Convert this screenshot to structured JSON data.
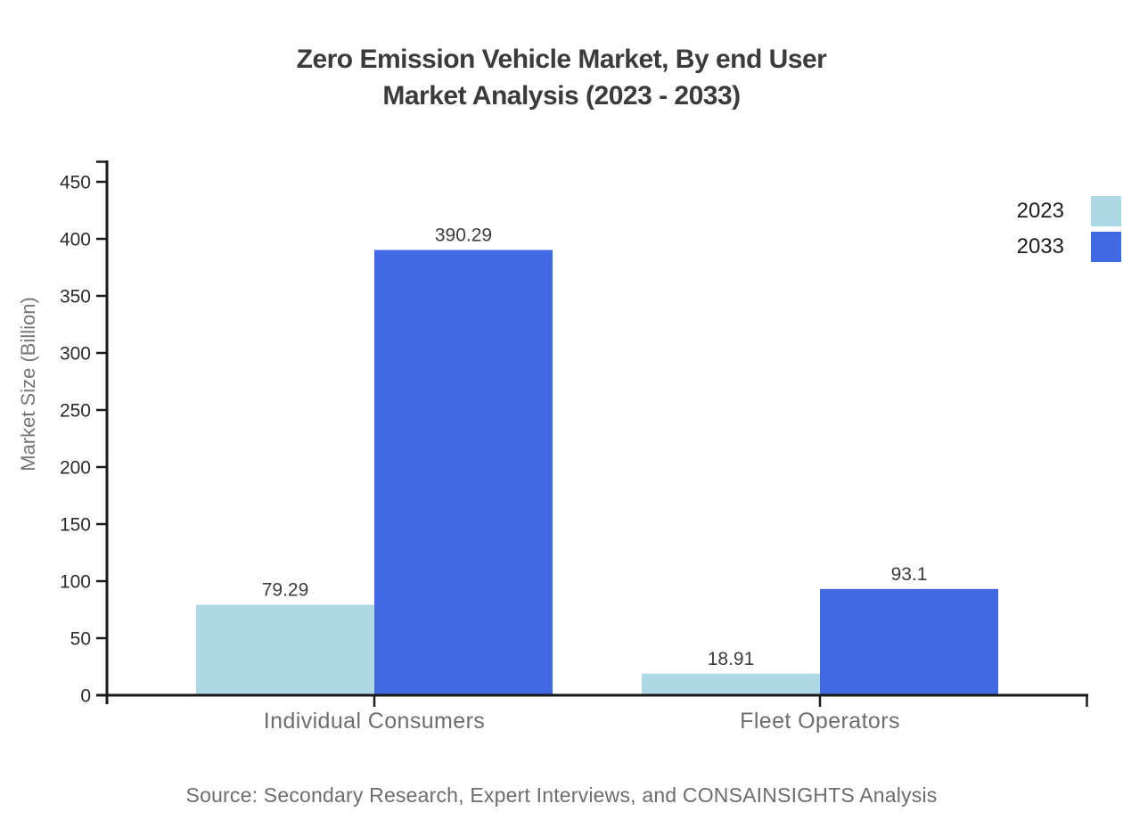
{
  "title": {
    "line1": "Zero Emission Vehicle Market, By end User",
    "line2": "Market Analysis (2023 - 2033)"
  },
  "source_note": "Source: Secondary Research, Expert Interviews, and CONSAINSIGHTS Analysis",
  "chart_data": {
    "type": "bar",
    "title": "Zero Emission Vehicle Market, By end User Market Analysis (2023 - 2033)",
    "categories": [
      "Individual Consumers",
      "Fleet Operators"
    ],
    "series": [
      {
        "name": "2023",
        "color": "#ADD8E6",
        "values": [
          79.29,
          18.91
        ],
        "labels": [
          "79.29",
          "18.91"
        ]
      },
      {
        "name": "2033",
        "color": "#4169E1",
        "values": [
          390.29,
          93.1
        ],
        "labels": [
          "390.29",
          "93.1"
        ]
      }
    ],
    "xlabel": "",
    "ylabel": "Market Size (Billion)",
    "ylim": [
      0,
      450
    ],
    "yticks": [
      0,
      50,
      100,
      150,
      200,
      250,
      300,
      350,
      400,
      450
    ],
    "grid": false,
    "legend_position": "top-right",
    "axis_color": "#1a1a1a"
  }
}
